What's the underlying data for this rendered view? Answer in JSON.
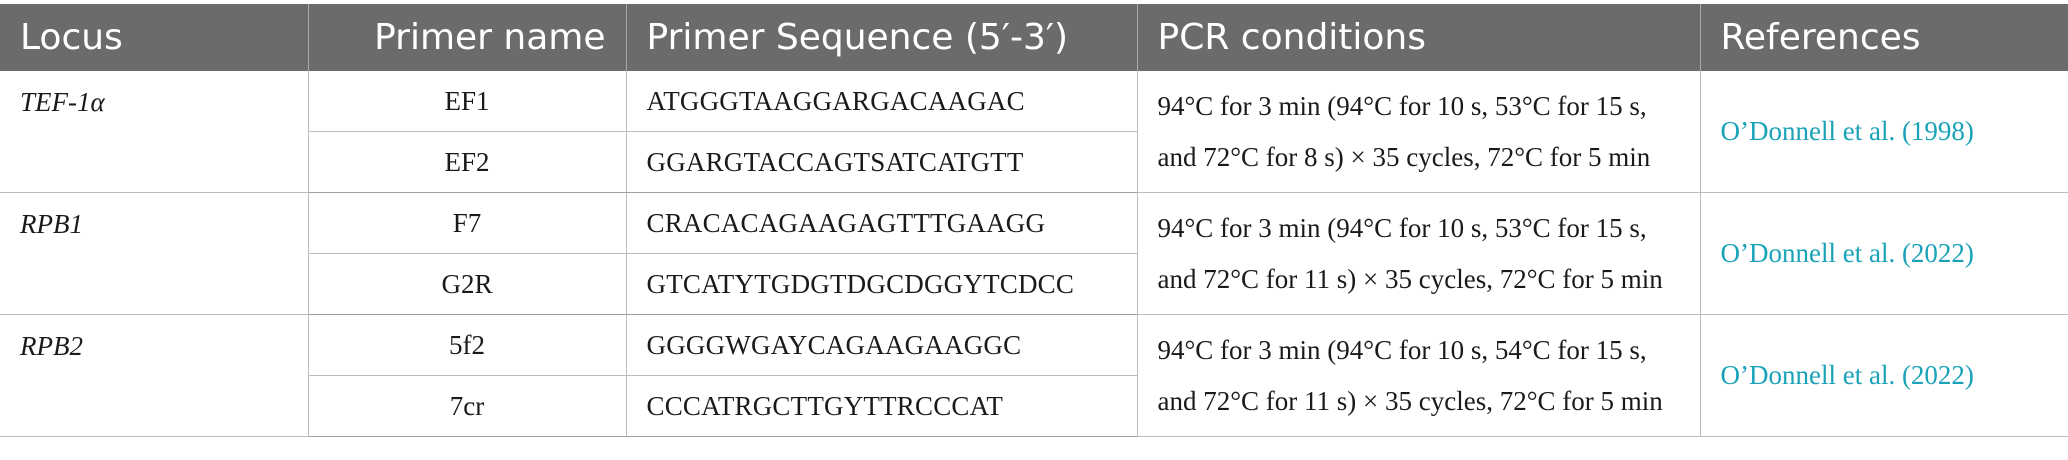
{
  "header": {
    "locus": "Locus",
    "primer_name": "Primer name",
    "primer_sequence": "Primer Sequence (5′-3′)",
    "pcr_conditions": "PCR conditions",
    "references": "References"
  },
  "rows": [
    {
      "locus": "TEF-1α",
      "pcr_line1": "94°C for 3 min (94°C for 10 s, 53°C for 15 s,",
      "pcr_line2": "and 72°C for 8 s) × 35 cycles, 72°C for 5 min",
      "reference": "O’Donnell et al. (1998)",
      "primers": [
        {
          "name": "EF1",
          "sequence": "ATGGGTAAGGARGACAAGAC"
        },
        {
          "name": "EF2",
          "sequence": "GGARGTACCAGTSATCATGTT"
        }
      ]
    },
    {
      "locus": "RPB1",
      "pcr_line1": "94°C for 3 min (94°C for 10 s, 53°C for 15 s,",
      "pcr_line2": "and 72°C for 11 s) × 35 cycles, 72°C for 5 min",
      "reference": "O’Donnell et al. (2022)",
      "primers": [
        {
          "name": "F7",
          "sequence": "CRACACAGAAGAGTTTGAAGG"
        },
        {
          "name": "G2R",
          "sequence": "GTCATYTGDGTDGCDGGYTCDCC"
        }
      ]
    },
    {
      "locus": "RPB2",
      "pcr_line1": "94°C for 3 min (94°C for 10 s, 54°C for 15 s,",
      "pcr_line2": "and 72°C for 11 s) × 35 cycles, 72°C for 5 min",
      "reference": "O’Donnell et al. (2022)",
      "primers": [
        {
          "name": "5f2",
          "sequence": "GGGGWGAYCAGAAGAAGGC"
        },
        {
          "name": "7cr",
          "sequence": "CCCATRGCTTGYTTRCCCAT"
        }
      ]
    }
  ],
  "colors": {
    "header_bg": "#6b6b6b",
    "header_text": "#ffffff",
    "link": "#1aa3b8",
    "border": "#bdbdbd"
  }
}
